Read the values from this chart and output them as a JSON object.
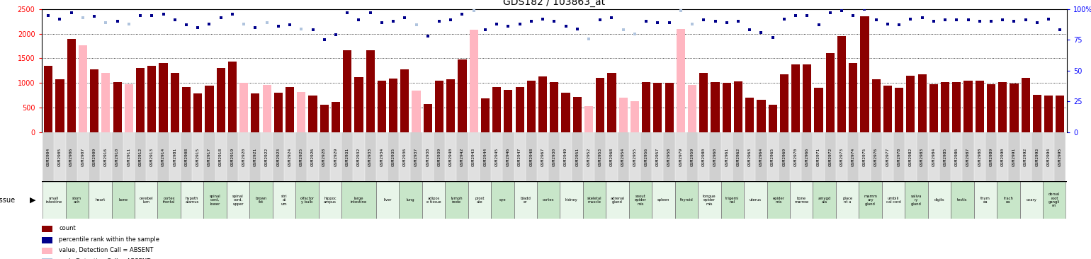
{
  "title": "GDS182 / 103863_at",
  "samples": [
    "GSM2904",
    "GSM2905",
    "GSM2906",
    "GSM2907",
    "GSM2909",
    "GSM2916",
    "GSM2910",
    "GSM2911",
    "GSM2912",
    "GSM2913",
    "GSM2914",
    "GSM2981",
    "GSM2908",
    "GSM2915",
    "GSM2917",
    "GSM2918",
    "GSM2919",
    "GSM2920",
    "GSM2921",
    "GSM2922",
    "GSM2923",
    "GSM2924",
    "GSM2925",
    "GSM2926",
    "GSM2928",
    "GSM2929",
    "GSM2931",
    "GSM2932",
    "GSM2933",
    "GSM2934",
    "GSM2935",
    "GSM2936",
    "GSM2937",
    "GSM2938",
    "GSM2939",
    "GSM2940",
    "GSM2942",
    "GSM2943",
    "GSM2944",
    "GSM2945",
    "GSM2946",
    "GSM2947",
    "GSM2948",
    "GSM2967",
    "GSM2930",
    "GSM2949",
    "GSM2951",
    "GSM2952",
    "GSM2953",
    "GSM2968",
    "GSM2954",
    "GSM2955",
    "GSM2956",
    "GSM2957",
    "GSM2958",
    "GSM2979",
    "GSM2959",
    "GSM2980",
    "GSM2960",
    "GSM2961",
    "GSM2962",
    "GSM2963",
    "GSM2964",
    "GSM2965",
    "GSM2969",
    "GSM2970",
    "GSM2966",
    "GSM2971",
    "GSM2972",
    "GSM2973",
    "GSM2974",
    "GSM2975",
    "GSM2976",
    "GSM2977",
    "GSM2978",
    "GSM2982",
    "GSM2983",
    "GSM2984",
    "GSM2985",
    "GSM2986",
    "GSM2987",
    "GSM2988",
    "GSM2989",
    "GSM2990",
    "GSM2991",
    "GSM2992",
    "GSM2993",
    "GSM2994",
    "GSM2995"
  ],
  "values": [
    1350,
    1070,
    1900,
    1770,
    1270,
    1210,
    1010,
    970,
    1300,
    1350,
    1400,
    1200,
    910,
    780,
    940,
    1300,
    1430,
    1000,
    790,
    960,
    800,
    920,
    810,
    750,
    550,
    620,
    1660,
    1120,
    1670,
    1040,
    1090,
    1270,
    840,
    570,
    1050,
    1070,
    1480,
    2080,
    680,
    920,
    860,
    910,
    1050,
    1130,
    1010,
    800,
    720,
    530,
    1100,
    1200,
    700,
    630,
    1020,
    1000,
    1000,
    2100,
    960,
    1200,
    1020,
    1000,
    1030,
    700,
    650,
    550,
    1170,
    1380,
    1380,
    900,
    1600,
    1950,
    1400,
    2360,
    1080,
    940,
    900,
    1140,
    1180,
    980,
    1010,
    1020,
    1040,
    1040,
    980,
    1020,
    990,
    1100,
    760,
    750,
    750
  ],
  "absent": [
    false,
    false,
    false,
    true,
    false,
    true,
    false,
    true,
    false,
    false,
    false,
    false,
    false,
    false,
    false,
    false,
    false,
    true,
    false,
    true,
    false,
    false,
    true,
    false,
    false,
    false,
    false,
    false,
    false,
    false,
    false,
    false,
    true,
    false,
    false,
    false,
    false,
    true,
    false,
    false,
    false,
    false,
    false,
    false,
    false,
    false,
    false,
    true,
    false,
    false,
    true,
    true,
    false,
    false,
    false,
    true,
    true,
    false,
    false,
    false,
    false,
    false,
    false,
    false,
    false,
    false,
    false,
    false,
    false,
    false,
    false,
    false,
    false,
    false,
    false,
    false,
    false,
    false,
    false,
    false,
    false,
    false,
    false,
    false,
    false,
    false,
    false,
    false,
    false
  ],
  "percentile_ranks": [
    95,
    92,
    97,
    93,
    94,
    89,
    90,
    88,
    95,
    95,
    96,
    91,
    87,
    85,
    88,
    93,
    96,
    88,
    85,
    89,
    86,
    87,
    84,
    83,
    75,
    79,
    97,
    91,
    97,
    89,
    90,
    93,
    87,
    78,
    90,
    91,
    96,
    99,
    83,
    88,
    86,
    88,
    90,
    92,
    90,
    86,
    84,
    76,
    91,
    93,
    83,
    80,
    90,
    89,
    89,
    99,
    88,
    91,
    90,
    89,
    90,
    83,
    81,
    77,
    92,
    95,
    95,
    87,
    97,
    99,
    95,
    100,
    91,
    88,
    87,
    92,
    93,
    90,
    91,
    91,
    91,
    90,
    90,
    91,
    90,
    91,
    89,
    92,
    83
  ],
  "rank_absent": [
    false,
    false,
    false,
    true,
    false,
    true,
    false,
    true,
    false,
    false,
    false,
    false,
    false,
    false,
    false,
    false,
    false,
    true,
    false,
    true,
    false,
    false,
    true,
    false,
    false,
    false,
    false,
    false,
    false,
    false,
    false,
    false,
    true,
    false,
    false,
    false,
    false,
    true,
    false,
    false,
    false,
    false,
    false,
    false,
    false,
    false,
    false,
    true,
    false,
    false,
    true,
    true,
    false,
    false,
    false,
    true,
    true,
    false,
    false,
    false,
    false,
    false,
    false,
    false,
    false,
    false,
    false,
    false,
    false,
    false,
    false,
    false,
    false,
    false,
    false,
    false,
    false,
    false,
    false,
    false,
    false,
    false,
    false,
    false,
    false,
    false,
    false,
    false,
    false
  ],
  "tissue_groups": [
    {
      "label": "small\nintestine",
      "count": 2
    },
    {
      "label": "stom\nach",
      "count": 2
    },
    {
      "label": "heart",
      "count": 2
    },
    {
      "label": "bone",
      "count": 2
    },
    {
      "label": "cerebel\nlum",
      "count": 2
    },
    {
      "label": "cortex\nfrontal",
      "count": 2
    },
    {
      "label": "hypoth\nalamus",
      "count": 2
    },
    {
      "label": "spinal\ncord,\nlower",
      "count": 2
    },
    {
      "label": "spinal\ncord,\nupper",
      "count": 2
    },
    {
      "label": "brown\nfat",
      "count": 2
    },
    {
      "label": "stri\nat\num",
      "count": 2
    },
    {
      "label": "olfactor\ny bulb",
      "count": 2
    },
    {
      "label": "hippoc\nampus",
      "count": 2
    },
    {
      "label": "large\nintestine",
      "count": 3
    },
    {
      "label": "liver",
      "count": 2
    },
    {
      "label": "lung",
      "count": 2
    },
    {
      "label": "adipos\ne tissue",
      "count": 2
    },
    {
      "label": "lymph\nnode",
      "count": 2
    },
    {
      "label": "prost\nate",
      "count": 2
    },
    {
      "label": "eye",
      "count": 2
    },
    {
      "label": "bladd\ner",
      "count": 2
    },
    {
      "label": "cortex",
      "count": 2
    },
    {
      "label": "kidney",
      "count": 2
    },
    {
      "label": "skeletal\nmuscle",
      "count": 2
    },
    {
      "label": "adrenal\ngland",
      "count": 2
    },
    {
      "label": "snout\nepider\nmis",
      "count": 2
    },
    {
      "label": "spleen",
      "count": 2
    },
    {
      "label": "thyroid",
      "count": 2
    },
    {
      "label": "tongue\nepider\nmis",
      "count": 2
    },
    {
      "label": "trigemi\nnal",
      "count": 2
    },
    {
      "label": "uterus",
      "count": 2
    },
    {
      "label": "epider\nmis",
      "count": 2
    },
    {
      "label": "bone\nmarrow",
      "count": 2
    },
    {
      "label": "amygd\nala",
      "count": 2
    },
    {
      "label": "place\nnt a",
      "count": 2
    },
    {
      "label": "mamm\nary\ngland",
      "count": 2
    },
    {
      "label": "umbili\ncal cord",
      "count": 2
    },
    {
      "label": "saliva\nry\ngland",
      "count": 2
    },
    {
      "label": "digits",
      "count": 2
    },
    {
      "label": "testis",
      "count": 2
    },
    {
      "label": "thym\nea",
      "count": 2
    },
    {
      "label": "trach\nea",
      "count": 2
    },
    {
      "label": "ovary",
      "count": 2
    },
    {
      "label": "dorsal\nroot\ngangli\non",
      "count": 2
    }
  ],
  "bar_color_present": "#8B0000",
  "bar_color_absent": "#FFB6C1",
  "dot_color_present": "#00008B",
  "dot_color_absent": "#B0C4DE",
  "tissue_colors": [
    "#E8F5E9",
    "#C8E6C9"
  ],
  "gsm_bg_even": "#D0D0D0",
  "gsm_bg_odd": "#E0E0E0",
  "yticks_left": [
    0,
    500,
    1000,
    1500,
    2000,
    2500
  ],
  "yticks_right": [
    0,
    25,
    50,
    75,
    100
  ],
  "ytick_right_labels": [
    "0",
    "25",
    "50",
    "75",
    "100%"
  ]
}
